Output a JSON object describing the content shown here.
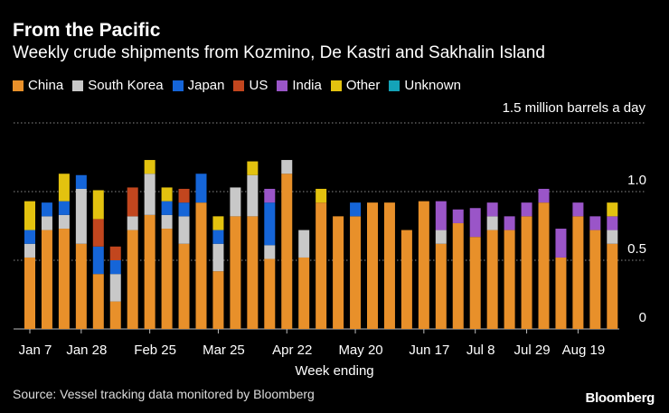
{
  "header": {
    "title": "From the Pacific",
    "subtitle": "Weekly crude shipments from Kozmino, De Kastri and Sakhalin Island"
  },
  "legend": [
    {
      "name": "China",
      "color": "#e8902a"
    },
    {
      "name": "South Korea",
      "color": "#c8c8c8"
    },
    {
      "name": "Japan",
      "color": "#1565d8"
    },
    {
      "name": "US",
      "color": "#c2461e"
    },
    {
      "name": "India",
      "color": "#9a55c8"
    },
    {
      "name": "Other",
      "color": "#e3c20f"
    },
    {
      "name": "Unknown",
      "color": "#14a3b8"
    }
  ],
  "footer": {
    "source": "Source: Vessel tracking data monitored by Bloomberg",
    "brand": "Bloomberg"
  },
  "chart_data": {
    "type": "bar",
    "stacked": true,
    "unit_label": "1.5 million barrels a day",
    "xlabel": "Week ending",
    "ylabel": "",
    "ylim": [
      0,
      1.5
    ],
    "yticks": [
      0,
      0.5,
      1.0
    ],
    "ytick_labels": [
      "0",
      "0.5",
      "1.0"
    ],
    "grid": true,
    "legend_position": "top",
    "x_tick_labels": [
      {
        "label": "Jan 7",
        "index": 0
      },
      {
        "label": "Jan 28",
        "index": 3
      },
      {
        "label": "Feb 25",
        "index": 7
      },
      {
        "label": "Mar 25",
        "index": 11
      },
      {
        "label": "Apr 22",
        "index": 15
      },
      {
        "label": "May 20",
        "index": 19
      },
      {
        "label": "Jun 17",
        "index": 23
      },
      {
        "label": "Jul 8",
        "index": 26
      },
      {
        "label": "Jul 29",
        "index": 29
      },
      {
        "label": "Aug 19",
        "index": 32
      }
    ],
    "categories": [
      "Jan 7",
      "",
      "",
      "Jan 28",
      "",
      "",
      "",
      "Feb 25",
      "",
      "",
      "",
      "Mar 25",
      "",
      "",
      "",
      "Apr 22",
      "",
      "",
      "",
      "May 20",
      "",
      "",
      "",
      "Jun 17",
      "",
      "",
      "Jul 8",
      "",
      "",
      "Jul 29",
      "",
      "",
      "Aug 19",
      "",
      ""
    ],
    "series": [
      {
        "name": "China",
        "color": "#e8902a",
        "values": [
          0.52,
          0.72,
          0.73,
          0.62,
          0.4,
          0.2,
          0.72,
          0.83,
          0.73,
          0.62,
          0.92,
          0.42,
          0.82,
          0.82,
          0.51,
          1.13,
          0.52,
          0.92,
          0.82,
          0.82,
          0.92,
          0.92,
          0.72,
          0.93,
          0.62,
          0.77,
          0.67,
          0.72,
          0.72,
          0.82,
          0.92,
          0.52,
          0.82,
          0.72,
          0.62
        ]
      },
      {
        "name": "South Korea",
        "color": "#c8c8c8",
        "values": [
          0.1,
          0.1,
          0.1,
          0.4,
          0.0,
          0.2,
          0.1,
          0.3,
          0.1,
          0.2,
          0.0,
          0.2,
          0.21,
          0.3,
          0.1,
          0.1,
          0.2,
          0.0,
          0.0,
          0.0,
          0.0,
          0.0,
          0.0,
          0.0,
          0.1,
          0.0,
          0.0,
          0.1,
          0.0,
          0.0,
          0.0,
          0.0,
          0.0,
          0.0,
          0.1
        ]
      },
      {
        "name": "Japan",
        "color": "#1565d8",
        "values": [
          0.1,
          0.1,
          0.1,
          0.1,
          0.2,
          0.1,
          0.0,
          0.0,
          0.1,
          0.1,
          0.21,
          0.1,
          0.0,
          0.0,
          0.31,
          0.0,
          0.0,
          0.0,
          0.0,
          0.1,
          0.0,
          0.0,
          0.0,
          0.0,
          0.0,
          0.0,
          0.0,
          0.0,
          0.0,
          0.0,
          0.0,
          0.0,
          0.0,
          0.0,
          0.0
        ]
      },
      {
        "name": "US",
        "color": "#c2461e",
        "values": [
          0.0,
          0.0,
          0.0,
          0.0,
          0.2,
          0.1,
          0.21,
          0.0,
          0.0,
          0.1,
          0.0,
          0.0,
          0.0,
          0.0,
          0.0,
          0.0,
          0.0,
          0.0,
          0.0,
          0.0,
          0.0,
          0.0,
          0.0,
          0.0,
          0.0,
          0.0,
          0.0,
          0.0,
          0.0,
          0.0,
          0.0,
          0.0,
          0.0,
          0.0,
          0.0
        ]
      },
      {
        "name": "India",
        "color": "#9a55c8",
        "values": [
          0.0,
          0.0,
          0.0,
          0.0,
          0.0,
          0.0,
          0.0,
          0.0,
          0.0,
          0.0,
          0.0,
          0.0,
          0.0,
          0.0,
          0.1,
          0.0,
          0.0,
          0.0,
          0.0,
          0.0,
          0.0,
          0.0,
          0.0,
          0.0,
          0.21,
          0.1,
          0.21,
          0.1,
          0.1,
          0.1,
          0.1,
          0.21,
          0.1,
          0.1,
          0.1
        ]
      },
      {
        "name": "Other",
        "color": "#e3c20f",
        "values": [
          0.21,
          0.0,
          0.2,
          0.0,
          0.21,
          0.0,
          0.0,
          0.1,
          0.1,
          0.0,
          0.0,
          0.1,
          0.0,
          0.1,
          0.0,
          0.0,
          0.0,
          0.1,
          0.0,
          0.0,
          0.0,
          0.0,
          0.0,
          0.0,
          0.0,
          0.0,
          0.0,
          0.0,
          0.0,
          0.0,
          0.0,
          0.0,
          0.0,
          0.0,
          0.1
        ]
      },
      {
        "name": "Unknown",
        "color": "#14a3b8",
        "values": [
          0,
          0,
          0,
          0,
          0,
          0,
          0,
          0,
          0,
          0,
          0,
          0,
          0,
          0,
          0,
          0,
          0,
          0,
          0,
          0,
          0,
          0,
          0,
          0,
          0,
          0,
          0,
          0,
          0,
          0,
          0,
          0,
          0,
          0,
          0
        ]
      }
    ]
  }
}
